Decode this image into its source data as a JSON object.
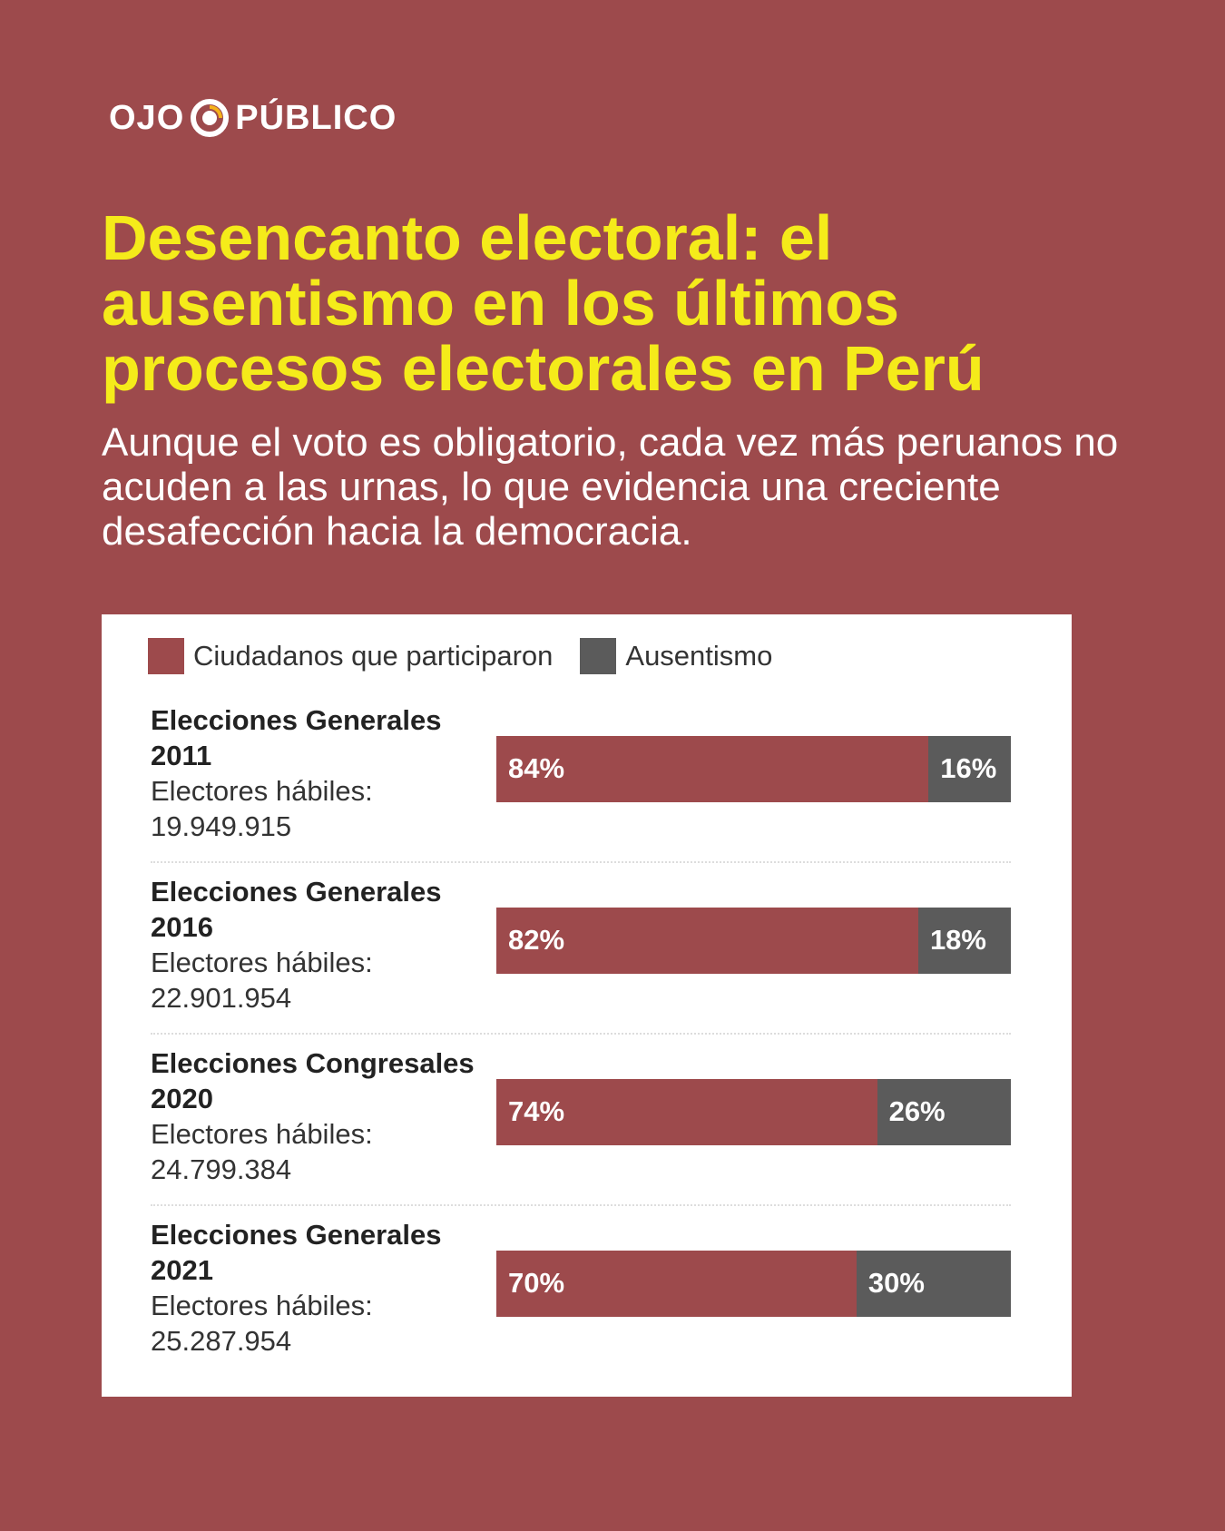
{
  "brand": {
    "left": "OJO",
    "right": "PÚBLICO",
    "mark_icon": "eye-logo-icon"
  },
  "title": "Desencanto electoral: el ausentismo en los últimos procesos electorales en Perú",
  "subtitle": "Aunque el voto es obligatorio, cada vez más peruanos no acuden a las urnas, lo que evidencia una creciente desafección hacia la democracia.",
  "colors": {
    "background": "#9d4a4c",
    "participation": "#9d4a4c",
    "absenteeism": "#5b5b5b",
    "title": "#f5eb1a"
  },
  "chart_data": {
    "type": "bar",
    "stacked": true,
    "orientation": "horizontal",
    "legend": [
      "Ciudadanos que participaron",
      "Ausentismo"
    ],
    "legend_position": "top-left",
    "categories": [
      {
        "name": "Elecciones Generales",
        "year": "2011",
        "electores_label": "Electores hábiles:",
        "electores": "19.949.915"
      },
      {
        "name": "Elecciones Generales",
        "year": "2016",
        "electores_label": "Electores hábiles:",
        "electores": "22.901.954"
      },
      {
        "name": "Elecciones Congresales",
        "year": "2020",
        "electores_label": "Electores hábiles:",
        "electores": "24.799.384"
      },
      {
        "name": "Elecciones Generales",
        "year": "2021",
        "electores_label": "Electores hábiles:",
        "electores": "25.287.954"
      }
    ],
    "series": [
      {
        "name": "Ciudadanos que participaron",
        "values": [
          84,
          82,
          74,
          70
        ],
        "labels": [
          "84%",
          "82%",
          "74%",
          "70%"
        ]
      },
      {
        "name": "Ausentismo",
        "values": [
          16,
          18,
          26,
          30
        ],
        "labels": [
          "16%",
          "18%",
          "26%",
          "30%"
        ]
      }
    ],
    "xlim": [
      0,
      100
    ],
    "grid": false
  }
}
